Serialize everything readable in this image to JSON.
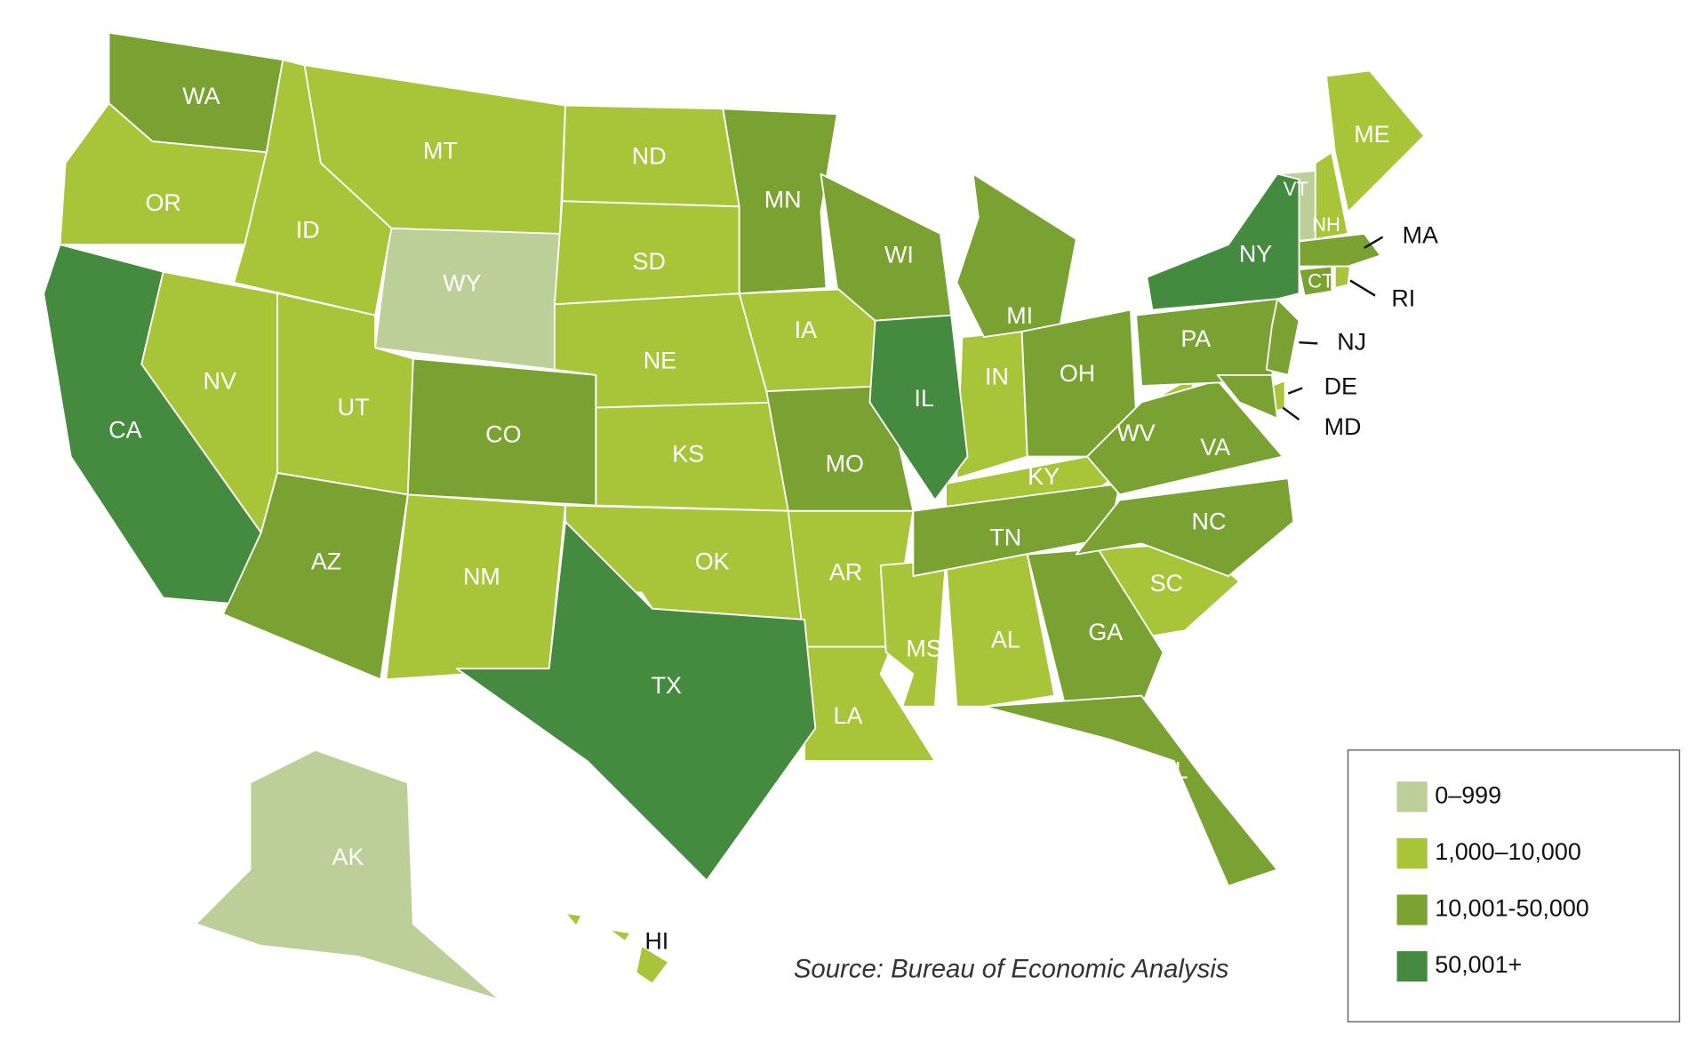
{
  "legend": {
    "items": [
      {
        "label": "0–999",
        "color": "#bccf98",
        "states": [
          {
            "label": "WY"
          },
          {
            "label": "VT"
          },
          {
            "label": "AK"
          }
        ]
      },
      {
        "label": "1,000–10,000",
        "color": "#a8c53a",
        "states": [
          {
            "label": "OR"
          },
          {
            "label": "ID"
          },
          {
            "label": "MT"
          },
          {
            "label": "NV"
          },
          {
            "label": "UT"
          },
          {
            "label": "NM"
          },
          {
            "label": "ND"
          },
          {
            "label": "SD"
          },
          {
            "label": "NE"
          },
          {
            "label": "KS"
          },
          {
            "label": "OK"
          },
          {
            "label": "IA"
          },
          {
            "label": "AR"
          },
          {
            "label": "LA"
          },
          {
            "label": "MS"
          },
          {
            "label": "AL"
          },
          {
            "label": "IN"
          },
          {
            "label": "KY"
          },
          {
            "label": "WV"
          },
          {
            "label": "SC"
          },
          {
            "label": "NH"
          },
          {
            "label": "ME"
          },
          {
            "label": "HI"
          },
          {
            "label": "DE"
          },
          {
            "label": "RI"
          }
        ]
      },
      {
        "label": "10,001-50,000",
        "color": "#7aa232",
        "states": [
          {
            "label": "WA"
          },
          {
            "label": "AZ"
          },
          {
            "label": "CO"
          },
          {
            "label": "MN"
          },
          {
            "label": "MO"
          },
          {
            "label": "WI"
          },
          {
            "label": "MI"
          },
          {
            "label": "OH"
          },
          {
            "label": "TN"
          },
          {
            "label": "GA"
          },
          {
            "label": "FL"
          },
          {
            "label": "NC"
          },
          {
            "label": "VA"
          },
          {
            "label": "PA"
          },
          {
            "label": "NJ"
          },
          {
            "label": "MD"
          },
          {
            "label": "CT"
          },
          {
            "label": "MA"
          }
        ]
      },
      {
        "label": "50,001+",
        "color": "#448a3f",
        "states": [
          {
            "label": "CA"
          },
          {
            "label": "TX"
          },
          {
            "label": "IL"
          },
          {
            "label": "NY"
          }
        ]
      }
    ]
  },
  "source": "Source: Bureau of Economic Analysis"
}
